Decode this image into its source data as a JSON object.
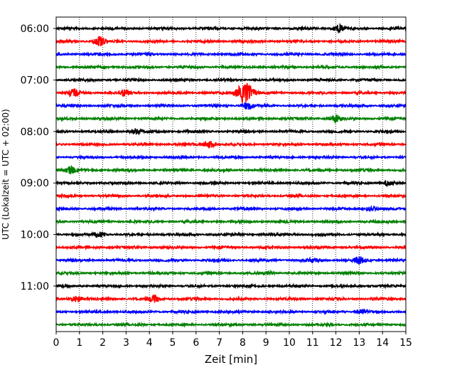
{
  "chart_data": {
    "type": "line",
    "title": "",
    "xlabel": "Zeit  [min]",
    "ylabel": "UTC (Lokalzeit = UTC + 02:00)",
    "xlim": [
      0,
      15
    ],
    "x_ticks": [
      0,
      1,
      2,
      3,
      4,
      5,
      6,
      7,
      8,
      9,
      10,
      11,
      12,
      13,
      14,
      15
    ],
    "grid": "vertical dotted",
    "y_tick_labels": [
      "06:00",
      "07:00",
      "08:00",
      "09:00",
      "10:00",
      "11:00"
    ],
    "row_interval_minutes": 15,
    "color_cycle": [
      "#000000",
      "#ff0000",
      "#0000ff",
      "#008000"
    ],
    "rows": [
      {
        "start": "06:00",
        "color": "#000000",
        "events": [
          {
            "t": 12.1,
            "amp": 0.45
          }
        ]
      },
      {
        "start": "06:15",
        "color": "#ff0000",
        "events": [
          {
            "t": 1.85,
            "amp": 0.55
          }
        ]
      },
      {
        "start": "06:30",
        "color": "#0000ff",
        "events": []
      },
      {
        "start": "06:45",
        "color": "#008000",
        "events": []
      },
      {
        "start": "07:00",
        "color": "#000000",
        "events": []
      },
      {
        "start": "07:15",
        "color": "#ff0000",
        "events": [
          {
            "t": 0.75,
            "amp": 0.45
          },
          {
            "t": 2.95,
            "amp": 0.35
          },
          {
            "t": 8.1,
            "amp": 1.3
          }
        ]
      },
      {
        "start": "07:30",
        "color": "#0000ff",
        "events": [
          {
            "t": 8.2,
            "amp": 0.45
          }
        ]
      },
      {
        "start": "07:45",
        "color": "#008000",
        "events": [
          {
            "t": 12.0,
            "amp": 0.4
          }
        ]
      },
      {
        "start": "08:00",
        "color": "#000000",
        "events": [
          {
            "t": 3.4,
            "amp": 0.3
          }
        ]
      },
      {
        "start": "08:15",
        "color": "#ff0000",
        "events": [
          {
            "t": 6.55,
            "amp": 0.45
          }
        ]
      },
      {
        "start": "08:30",
        "color": "#0000ff",
        "events": []
      },
      {
        "start": "08:45",
        "color": "#008000",
        "events": [
          {
            "t": 0.6,
            "amp": 0.4
          }
        ]
      },
      {
        "start": "09:00",
        "color": "#000000",
        "events": [
          {
            "t": 14.2,
            "amp": 0.3
          }
        ]
      },
      {
        "start": "09:15",
        "color": "#ff0000",
        "events": []
      },
      {
        "start": "09:30",
        "color": "#0000ff",
        "events": [
          {
            "t": 13.5,
            "amp": 0.25
          }
        ]
      },
      {
        "start": "09:45",
        "color": "#008000",
        "events": []
      },
      {
        "start": "10:00",
        "color": "#000000",
        "events": [
          {
            "t": 1.85,
            "amp": 0.3
          }
        ]
      },
      {
        "start": "10:15",
        "color": "#ff0000",
        "events": []
      },
      {
        "start": "10:30",
        "color": "#0000ff",
        "events": [
          {
            "t": 13.0,
            "amp": 0.4
          },
          {
            "t": 11.0,
            "amp": 0.2
          }
        ]
      },
      {
        "start": "10:45",
        "color": "#008000",
        "events": [
          {
            "t": 9.1,
            "amp": 0.2
          }
        ]
      },
      {
        "start": "11:00",
        "color": "#000000",
        "events": []
      },
      {
        "start": "11:15",
        "color": "#ff0000",
        "events": [
          {
            "t": 0.9,
            "amp": 0.4
          },
          {
            "t": 4.2,
            "amp": 0.4
          }
        ]
      },
      {
        "start": "11:30",
        "color": "#0000ff",
        "events": [
          {
            "t": 13.1,
            "amp": 0.25
          }
        ]
      },
      {
        "start": "11:45",
        "color": "#008000",
        "events": []
      }
    ]
  }
}
